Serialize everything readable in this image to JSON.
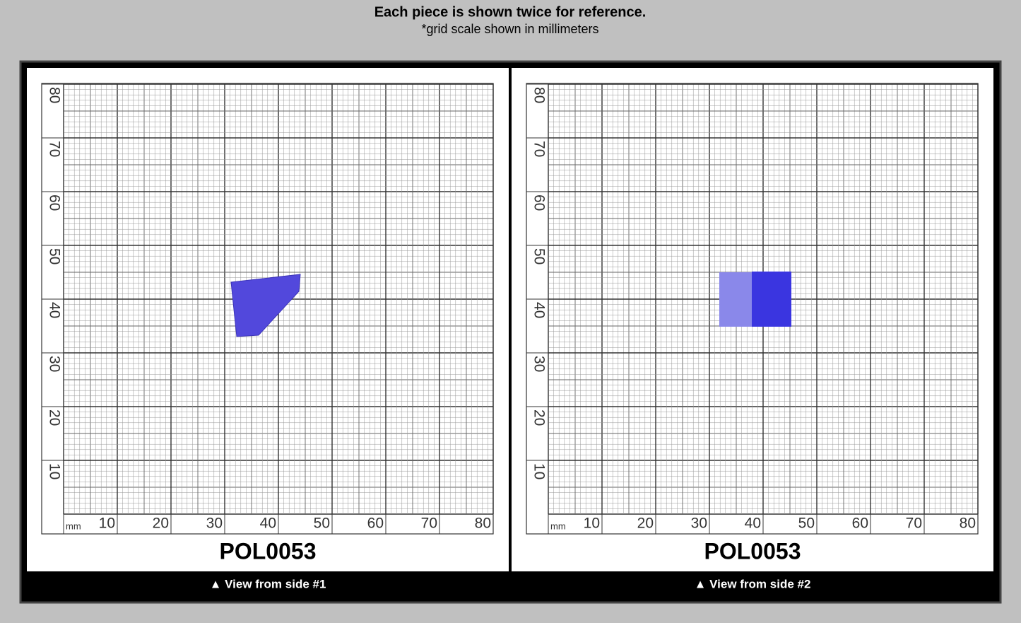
{
  "header": {
    "title": "Each piece is shown twice for reference.",
    "subtitle": "*grid scale shown in millimeters"
  },
  "scale": {
    "unit": "mm",
    "labels": [
      10,
      20,
      30,
      40,
      50,
      60,
      70,
      80
    ]
  },
  "panels": [
    {
      "label": "POL0053",
      "caption": "▲ View from side #1"
    },
    {
      "label": "POL0053",
      "caption": "▲ View from side #2"
    }
  ]
}
